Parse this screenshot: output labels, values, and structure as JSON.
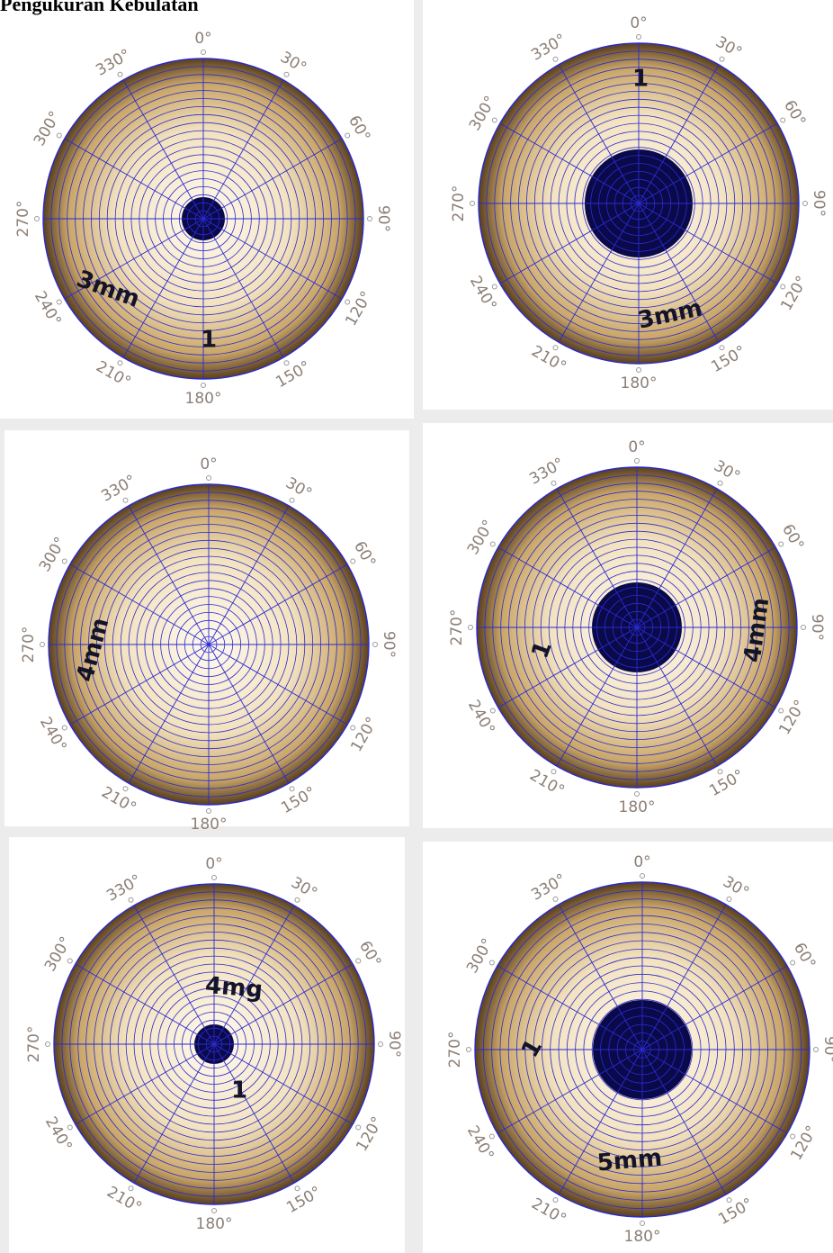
{
  "title": "Pengukuran Kebulatan",
  "angle_labels": [
    "0°",
    "30°",
    "60°",
    "90°",
    "120°",
    "150°",
    "180°",
    "210°",
    "240°",
    "270°",
    "300°",
    "330°"
  ],
  "plots": [
    {
      "notes": [
        "3mm",
        "1"
      ]
    },
    {
      "notes": [
        "1",
        "3mm"
      ]
    },
    {
      "notes": [
        "4mm"
      ]
    },
    {
      "notes": [
        "1",
        "4mm"
      ]
    },
    {
      "notes": [
        "4mg",
        "1"
      ]
    },
    {
      "notes": [
        "1",
        "5mm"
      ]
    }
  ]
}
